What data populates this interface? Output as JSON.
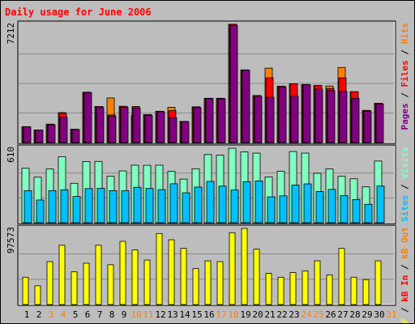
{
  "title": "Daily usage for June 2006",
  "colors": {
    "pages": "#800080",
    "files": "#ff0000",
    "hits": "#ff8000",
    "sites": "#00c0ff",
    "visits": "#80ffc0",
    "kbytes": "#ffff00",
    "weekend": "#ff8000",
    "weekday": "#000000",
    "title": "#ff0000"
  },
  "panels": {
    "top": {
      "max_label": "7212",
      "legend": [
        {
          "text": "Pages",
          "color": "#800080"
        },
        {
          "text": " / ",
          "color": "#000000"
        },
        {
          "text": "Files",
          "color": "#ff0000"
        },
        {
          "text": " / ",
          "color": "#000000"
        },
        {
          "text": "Hits",
          "color": "#ff8000"
        }
      ]
    },
    "mid": {
      "max_label": "610",
      "legend": [
        {
          "text": "Sites",
          "color": "#00c0ff"
        },
        {
          "text": " / ",
          "color": "#000000"
        },
        {
          "text": "Visits",
          "color": "#80ffc0"
        }
      ]
    },
    "bot": {
      "max_label": "97573",
      "legend": [
        {
          "text": "kB F",
          "color": "#ffff00"
        },
        {
          "text": " / ",
          "color": "#000000"
        },
        {
          "text": "kB In",
          "color": "#ff0000"
        },
        {
          "text": " / ",
          "color": "#000000"
        },
        {
          "text": "kB Out",
          "color": "#ff8000"
        }
      ]
    }
  },
  "chart_data": {
    "type": "bar",
    "title": "Daily usage for June 2006",
    "categories": [
      "1",
      "2",
      "3",
      "4",
      "5",
      "6",
      "7",
      "8",
      "9",
      "10",
      "11",
      "12",
      "13",
      "14",
      "15",
      "16",
      "17",
      "18",
      "19",
      "20",
      "21",
      "22",
      "23",
      "24",
      "25",
      "26",
      "27",
      "28",
      "29",
      "30",
      "31"
    ],
    "weekend_days": [
      "3",
      "4",
      "10",
      "11",
      "17",
      "18",
      "24",
      "25",
      "31"
    ],
    "panels": [
      {
        "name": "top",
        "ylim": [
          0,
          7212
        ],
        "series": [
          {
            "name": "Hits",
            "values": [
              970,
              770,
              1120,
              1830,
              810,
              3070,
              2200,
              2720,
              2210,
              1650,
              1700,
              1910,
              2150,
              1290,
              2180,
              2700,
              2700,
              7212,
              4430,
              2870,
              4540,
              3440,
              3580,
              3540,
              3480,
              3450,
              4580,
              3100,
              1960,
              2400,
              null
            ]
          },
          {
            "name": "Files",
            "values": [
              970,
              770,
              1120,
              1780,
              810,
              3070,
              2200,
              1690,
              2210,
              2200,
              1700,
              1910,
              1950,
              1290,
              2180,
              2700,
              2700,
              7212,
              4430,
              2870,
              3950,
              3440,
              3580,
              3540,
              3480,
              3300,
              3950,
              3100,
              1960,
              2400,
              null
            ]
          },
          {
            "name": "Pages",
            "values": [
              960,
              760,
              1080,
              1550,
              790,
              3040,
              2130,
              1610,
              2140,
              2110,
              1650,
              1870,
              1510,
              1270,
              2130,
              2680,
              2660,
              7150,
              4410,
              2820,
              2760,
              3380,
              2830,
              3520,
              3260,
              3170,
              3120,
              2700,
              1910,
              2340,
              null
            ]
          }
        ]
      },
      {
        "name": "mid",
        "ylim": [
          0,
          610
        ],
        "series": [
          {
            "name": "Visits",
            "values": [
              446,
              373,
              440,
              540,
              323,
              500,
              502,
              380,
              424,
              471,
              470,
              471,
              420,
              357,
              442,
              558,
              553,
              610,
              580,
              570,
              375,
              422,
              583,
              570,
              405,
              440,
              380,
              360,
              294,
              505,
              null
            ]
          },
          {
            "name": "Sites",
            "values": [
              262,
              186,
              263,
              270,
              215,
              280,
              282,
              263,
              262,
              290,
              281,
              271,
              319,
              245,
              292,
              338,
              300,
              268,
              336,
              342,
              212,
              220,
              308,
              318,
              255,
              273,
              221,
              190,
              151,
              300,
              null
            ]
          }
        ]
      },
      {
        "name": "bot",
        "ylim": [
          0,
          97573
        ],
        "series": [
          {
            "name": "kB F",
            "values": [
              35000,
              24000,
              55000,
              76000,
              42000,
              53000,
              76000,
              51000,
              81000,
              70000,
              57000,
              91000,
              83000,
              72000,
              46000,
              56000,
              55000,
              92000,
              97573,
              71000,
              40000,
              35000,
              41000,
              43000,
              56000,
              38000,
              72000,
              35000,
              32000,
              56000,
              null
            ]
          }
        ]
      }
    ]
  }
}
